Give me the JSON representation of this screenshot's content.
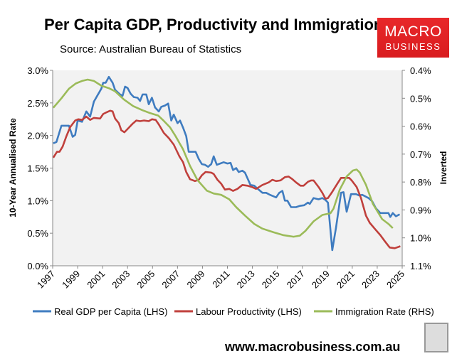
{
  "header": {
    "title": "Per Capita GDP, Productivity and Immigration",
    "subtitle": "Source: Australian Bureau of Statistics"
  },
  "logo": {
    "line1": "MACRO",
    "line2": "BUSINESS",
    "color": "#e32224"
  },
  "footer": {
    "url": "www.macrobusiness.com.au"
  },
  "chart_data": {
    "type": "line",
    "title": "Per Capita GDP, Productivity and Immigration",
    "ylabel": "10-Year Annualised Rate",
    "y2label": "Inverted",
    "xlim": [
      1997,
      2025
    ],
    "ylim": [
      0,
      3.0
    ],
    "y2lim": [
      0.4,
      1.1
    ],
    "y2_inverted": true,
    "x_ticks": [
      "1997",
      "1999",
      "2001",
      "2003",
      "2005",
      "2007",
      "2009",
      "2011",
      "2013",
      "2015",
      "2017",
      "2019",
      "2021",
      "2023",
      "2025"
    ],
    "y_ticks": [
      "0.0%",
      "0.5%",
      "1.0%",
      "1.5%",
      "2.0%",
      "2.5%",
      "3.0%"
    ],
    "y2_ticks": [
      "0.4%",
      "0.5%",
      "0.6%",
      "0.7%",
      "0.8%",
      "0.9%",
      "1.0%",
      "1.1%"
    ],
    "legend_position": "bottom",
    "grid": false,
    "series": [
      {
        "name": "Real GDP per Capita (LHS)",
        "axis": "left",
        "color": "#3f7cc0",
        "points": [
          [
            1997.05,
            1.88
          ],
          [
            1997.3,
            1.9
          ],
          [
            1997.7,
            2.15
          ],
          [
            1998.3,
            2.15
          ],
          [
            1998.6,
            1.98
          ],
          [
            1998.8,
            2.01
          ],
          [
            1999.0,
            2.23
          ],
          [
            1999.35,
            2.21
          ],
          [
            1999.7,
            2.37
          ],
          [
            2000.0,
            2.29
          ],
          [
            2000.3,
            2.52
          ],
          [
            2000.9,
            2.72
          ],
          [
            2001.05,
            2.81
          ],
          [
            2001.25,
            2.81
          ],
          [
            2001.5,
            2.9
          ],
          [
            2001.8,
            2.81
          ],
          [
            2002.0,
            2.7
          ],
          [
            2002.4,
            2.63
          ],
          [
            2002.6,
            2.61
          ],
          [
            2002.8,
            2.75
          ],
          [
            2003.0,
            2.73
          ],
          [
            2003.25,
            2.64
          ],
          [
            2003.5,
            2.59
          ],
          [
            2003.8,
            2.58
          ],
          [
            2004.0,
            2.53
          ],
          [
            2004.2,
            2.63
          ],
          [
            2004.5,
            2.63
          ],
          [
            2004.7,
            2.48
          ],
          [
            2004.95,
            2.58
          ],
          [
            2005.2,
            2.43
          ],
          [
            2005.5,
            2.37
          ],
          [
            2005.7,
            2.44
          ],
          [
            2006.0,
            2.46
          ],
          [
            2006.25,
            2.49
          ],
          [
            2006.5,
            2.23
          ],
          [
            2006.7,
            2.32
          ],
          [
            2007.0,
            2.19
          ],
          [
            2007.2,
            2.23
          ],
          [
            2007.45,
            2.12
          ],
          [
            2007.7,
            1.99
          ],
          [
            2007.9,
            1.75
          ],
          [
            2008.45,
            1.75
          ],
          [
            2008.7,
            1.64
          ],
          [
            2008.95,
            1.56
          ],
          [
            2009.2,
            1.55
          ],
          [
            2009.45,
            1.52
          ],
          [
            2009.7,
            1.56
          ],
          [
            2009.9,
            1.68
          ],
          [
            2010.15,
            1.55
          ],
          [
            2010.7,
            1.59
          ],
          [
            2011.0,
            1.57
          ],
          [
            2011.25,
            1.58
          ],
          [
            2011.45,
            1.47
          ],
          [
            2011.7,
            1.5
          ],
          [
            2011.9,
            1.44
          ],
          [
            2012.2,
            1.46
          ],
          [
            2012.4,
            1.43
          ],
          [
            2012.85,
            1.24
          ],
          [
            2013.15,
            1.23
          ],
          [
            2013.5,
            1.17
          ],
          [
            2013.8,
            1.12
          ],
          [
            2014.1,
            1.12
          ],
          [
            2014.4,
            1.09
          ],
          [
            2014.9,
            1.05
          ],
          [
            2015.15,
            1.12
          ],
          [
            2015.4,
            1.15
          ],
          [
            2015.6,
            1.0
          ],
          [
            2015.8,
            1.0
          ],
          [
            2016.1,
            0.9
          ],
          [
            2016.5,
            0.9
          ],
          [
            2016.8,
            0.92
          ],
          [
            2017.15,
            0.93
          ],
          [
            2017.45,
            0.97
          ],
          [
            2017.6,
            0.95
          ],
          [
            2017.9,
            1.04
          ],
          [
            2018.3,
            1.02
          ],
          [
            2018.6,
            1.04
          ],
          [
            2018.85,
            1.01
          ],
          [
            2019.05,
            0.97
          ],
          [
            2019.4,
            0.24
          ],
          [
            2019.7,
            0.59
          ],
          [
            2020.1,
            1.12
          ],
          [
            2020.3,
            1.13
          ],
          [
            2020.55,
            0.83
          ],
          [
            2020.9,
            1.1
          ],
          [
            2021.3,
            1.1
          ],
          [
            2021.55,
            1.08
          ],
          [
            2021.8,
            1.09
          ],
          [
            2022.3,
            1.04
          ],
          [
            2022.6,
            0.99
          ],
          [
            2022.9,
            0.88
          ],
          [
            2023.25,
            0.81
          ],
          [
            2023.9,
            0.81
          ],
          [
            2024.05,
            0.75
          ],
          [
            2024.25,
            0.81
          ],
          [
            2024.5,
            0.76
          ],
          [
            2024.8,
            0.79
          ]
        ]
      },
      {
        "name": "Labour Productivity (LHS)",
        "axis": "left",
        "color": "#c0403c",
        "points": [
          [
            1997.05,
            1.66
          ],
          [
            1997.35,
            1.75
          ],
          [
            1997.55,
            1.75
          ],
          [
            1997.8,
            1.83
          ],
          [
            1998.1,
            1.99
          ],
          [
            1998.4,
            2.13
          ],
          [
            1998.8,
            2.23
          ],
          [
            1999.05,
            2.25
          ],
          [
            1999.35,
            2.24
          ],
          [
            1999.7,
            2.29
          ],
          [
            2000.0,
            2.24
          ],
          [
            2000.3,
            2.27
          ],
          [
            2000.8,
            2.26
          ],
          [
            2001.05,
            2.33
          ],
          [
            2001.25,
            2.35
          ],
          [
            2001.6,
            2.38
          ],
          [
            2001.8,
            2.37
          ],
          [
            2002.0,
            2.26
          ],
          [
            2002.3,
            2.19
          ],
          [
            2002.5,
            2.08
          ],
          [
            2002.75,
            2.05
          ],
          [
            2003.05,
            2.11
          ],
          [
            2003.4,
            2.18
          ],
          [
            2003.7,
            2.23
          ],
          [
            2004.0,
            2.22
          ],
          [
            2004.3,
            2.23
          ],
          [
            2004.7,
            2.22
          ],
          [
            2004.95,
            2.25
          ],
          [
            2005.25,
            2.24
          ],
          [
            2005.5,
            2.17
          ],
          [
            2005.9,
            2.04
          ],
          [
            2006.3,
            1.96
          ],
          [
            2006.7,
            1.86
          ],
          [
            2007.15,
            1.68
          ],
          [
            2007.45,
            1.59
          ],
          [
            2007.7,
            1.44
          ],
          [
            2008.0,
            1.33
          ],
          [
            2008.4,
            1.3
          ],
          [
            2008.7,
            1.32
          ],
          [
            2008.95,
            1.39
          ],
          [
            2009.25,
            1.44
          ],
          [
            2009.7,
            1.43
          ],
          [
            2009.9,
            1.41
          ],
          [
            2010.2,
            1.32
          ],
          [
            2010.5,
            1.26
          ],
          [
            2010.8,
            1.17
          ],
          [
            2011.15,
            1.18
          ],
          [
            2011.45,
            1.15
          ],
          [
            2011.8,
            1.18
          ],
          [
            2012.2,
            1.24
          ],
          [
            2012.6,
            1.23
          ],
          [
            2012.95,
            1.21
          ],
          [
            2013.3,
            1.18
          ],
          [
            2013.8,
            1.24
          ],
          [
            2014.3,
            1.28
          ],
          [
            2014.6,
            1.32
          ],
          [
            2014.9,
            1.3
          ],
          [
            2015.25,
            1.31
          ],
          [
            2015.6,
            1.36
          ],
          [
            2015.9,
            1.37
          ],
          [
            2016.2,
            1.33
          ],
          [
            2016.5,
            1.28
          ],
          [
            2016.85,
            1.23
          ],
          [
            2017.1,
            1.23
          ],
          [
            2017.45,
            1.29
          ],
          [
            2017.7,
            1.31
          ],
          [
            2017.9,
            1.31
          ],
          [
            2018.3,
            1.21
          ],
          [
            2018.6,
            1.12
          ],
          [
            2018.85,
            1.03
          ],
          [
            2019.05,
            1.04
          ],
          [
            2019.35,
            1.12
          ],
          [
            2019.7,
            1.23
          ],
          [
            2020.1,
            1.35
          ],
          [
            2020.4,
            1.35
          ],
          [
            2020.75,
            1.35
          ],
          [
            2020.95,
            1.31
          ],
          [
            2021.35,
            1.21
          ],
          [
            2021.7,
            1.04
          ],
          [
            2022.1,
            0.77
          ],
          [
            2022.4,
            0.66
          ],
          [
            2022.8,
            0.57
          ],
          [
            2023.25,
            0.47
          ],
          [
            2023.6,
            0.38
          ],
          [
            2024.0,
            0.28
          ],
          [
            2024.4,
            0.27
          ],
          [
            2024.85,
            0.3
          ]
        ]
      },
      {
        "name": "Immigration Rate (RHS)",
        "axis": "right",
        "color": "#9bbb59",
        "points": [
          [
            1997.05,
            0.534
          ],
          [
            1997.7,
            0.5
          ],
          [
            1998.3,
            0.466
          ],
          [
            1998.85,
            0.447
          ],
          [
            1999.35,
            0.438
          ],
          [
            1999.8,
            0.433
          ],
          [
            2000.3,
            0.438
          ],
          [
            2000.9,
            0.455
          ],
          [
            2001.5,
            0.464
          ],
          [
            2002.0,
            0.475
          ],
          [
            2002.7,
            0.504
          ],
          [
            2003.45,
            0.528
          ],
          [
            2004.2,
            0.543
          ],
          [
            2004.8,
            0.553
          ],
          [
            2005.45,
            0.562
          ],
          [
            2005.9,
            0.581
          ],
          [
            2006.4,
            0.604
          ],
          [
            2006.85,
            0.636
          ],
          [
            2007.45,
            0.683
          ],
          [
            2008.0,
            0.742
          ],
          [
            2008.6,
            0.793
          ],
          [
            2009.35,
            0.831
          ],
          [
            2009.9,
            0.841
          ],
          [
            2010.5,
            0.846
          ],
          [
            2011.15,
            0.862
          ],
          [
            2011.7,
            0.89
          ],
          [
            2012.4,
            0.92
          ],
          [
            2013.15,
            0.95
          ],
          [
            2013.8,
            0.967
          ],
          [
            2014.7,
            0.98
          ],
          [
            2015.45,
            0.99
          ],
          [
            2016.3,
            0.996
          ],
          [
            2016.8,
            0.992
          ],
          [
            2017.25,
            0.975
          ],
          [
            2017.9,
            0.941
          ],
          [
            2018.6,
            0.918
          ],
          [
            2019.25,
            0.912
          ],
          [
            2019.5,
            0.895
          ],
          [
            2020.0,
            0.827
          ],
          [
            2020.55,
            0.78
          ],
          [
            2021.05,
            0.759
          ],
          [
            2021.35,
            0.755
          ],
          [
            2021.6,
            0.766
          ],
          [
            2022.1,
            0.81
          ],
          [
            2022.65,
            0.878
          ],
          [
            2023.4,
            0.933
          ],
          [
            2023.9,
            0.95
          ],
          [
            2024.25,
            0.965
          ]
        ]
      }
    ]
  }
}
